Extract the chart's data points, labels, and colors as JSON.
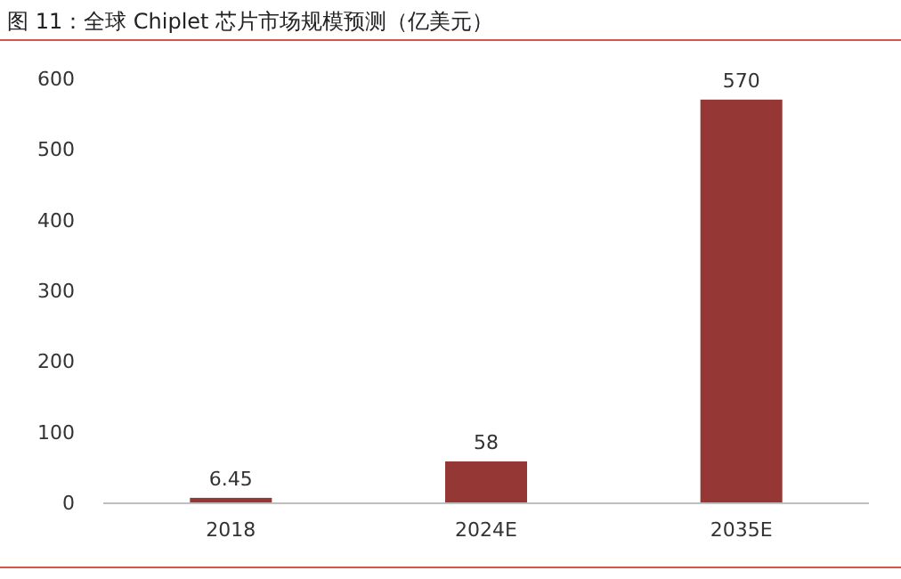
{
  "chart_data": {
    "type": "bar",
    "title": "图 11：全球 Chiplet 芯片市场规模预测（亿美元）",
    "categories": [
      "2018",
      "2024E",
      "2035E"
    ],
    "values": [
      6.45,
      58,
      570
    ],
    "color": "#953735",
    "value_labels": [
      "6.45",
      "58",
      "570"
    ],
    "ylim": [
      0,
      600
    ],
    "yticks": [
      0,
      100,
      200,
      300,
      400,
      500,
      600
    ],
    "grid": false
  }
}
